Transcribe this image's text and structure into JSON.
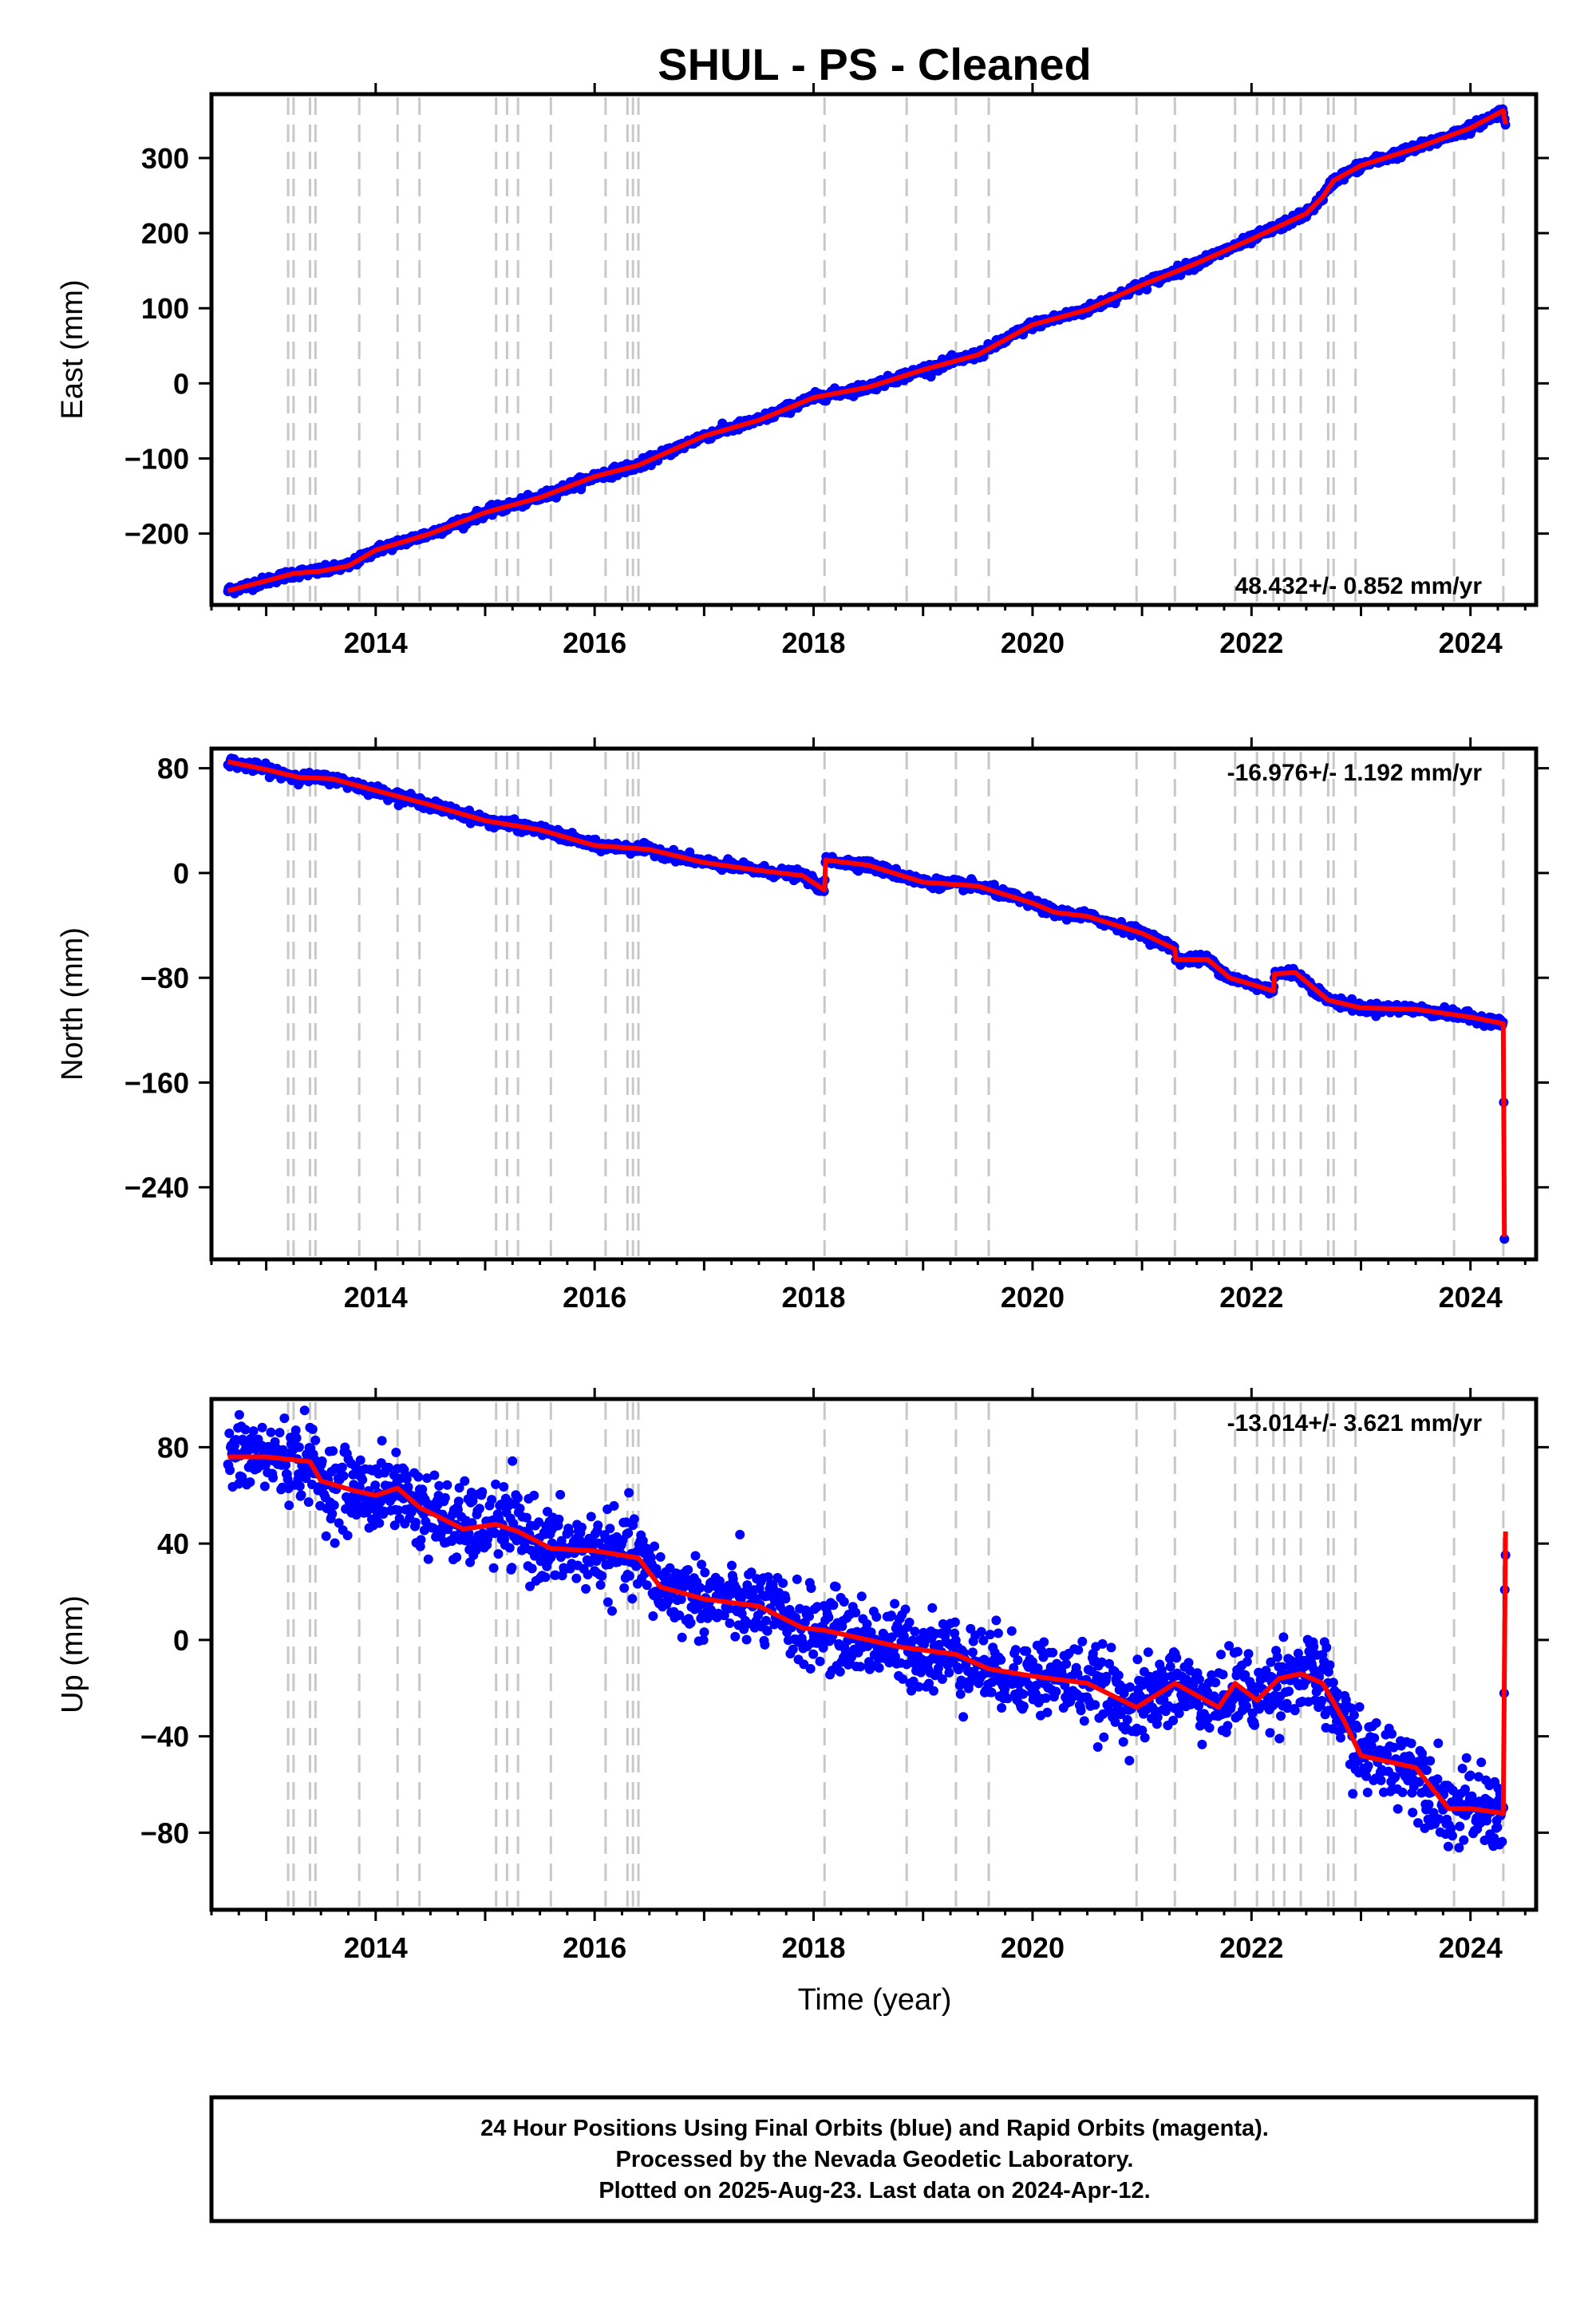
{
  "title": "SHUL  - PS - Cleaned",
  "xlabel": "Time (year)",
  "footer": {
    "lines": [
      "24 Hour Positions Using Final Orbits (blue) and Rapid Orbits (magenta).",
      "Processed by the Nevada Geodetic Laboratory.",
      "Plotted on 2025-Aug-23. Last data on 2024-Apr-12."
    ]
  },
  "colors": {
    "data": "#0000ff",
    "model": "#ff0000",
    "steps": "#c8c8c8",
    "frame": "#000000"
  },
  "chart_data": [
    {
      "type": "scatter",
      "component": "east",
      "ylabel": "East (mm)",
      "rate_label": "48.432+/- 0.852 mm/yr",
      "rate_position": "bottom-right",
      "xlim": [
        2012.5,
        2024.6
      ],
      "ylim": [
        -295,
        385
      ],
      "xticks": [
        2014,
        2016,
        2018,
        2020,
        2022,
        2024
      ],
      "yticks": [
        -200,
        -100,
        0,
        100,
        200,
        300
      ],
      "scatter_sd": 3,
      "series": [
        {
          "role": "model",
          "x": [
            2012.65,
            2013.0,
            2013.25,
            2013.5,
            2013.75,
            2014.0,
            2014.5,
            2015.0,
            2015.5,
            2016.0,
            2016.4,
            2017.0,
            2017.5,
            2018.0,
            2018.5,
            2019.0,
            2019.5,
            2020.0,
            2020.5,
            2021.0,
            2021.5,
            2022.0,
            2022.5,
            2022.65,
            2022.75,
            2023.0,
            2023.5,
            2024.0,
            2024.3,
            2024.32
          ],
          "y": [
            -276,
            -263,
            -253,
            -250,
            -243,
            -222,
            -200,
            -172,
            -152,
            -124,
            -109,
            -70,
            -49,
            -19,
            -5,
            18,
            38,
            78,
            98,
            131,
            160,
            192,
            226,
            248,
            270,
            290,
            313,
            340,
            363,
            345
          ]
        }
      ]
    },
    {
      "type": "scatter",
      "component": "north",
      "ylabel": "North (mm)",
      "rate_label": "-16.976+/- 1.192 mm/yr",
      "rate_position": "top-right",
      "xlim": [
        2012.5,
        2024.6
      ],
      "ylim": [
        -295,
        95
      ],
      "xticks": [
        2014,
        2016,
        2018,
        2020,
        2022,
        2024
      ],
      "yticks": [
        -240,
        -160,
        -80,
        0,
        80
      ],
      "scatter_sd": 1.8,
      "series": [
        {
          "role": "model",
          "x": [
            2012.65,
            2013.0,
            2013.3,
            2013.6,
            2014.0,
            2014.5,
            2015.0,
            2015.5,
            2016.0,
            2016.5,
            2017.0,
            2017.5,
            2017.9,
            2018.1,
            2018.11,
            2018.5,
            2019.0,
            2019.5,
            2020.0,
            2020.2,
            2020.5,
            2021.0,
            2021.3,
            2021.31,
            2021.6,
            2021.8,
            2022.0,
            2022.2,
            2022.21,
            2022.4,
            2022.7,
            2023.0,
            2023.5,
            2024.0,
            2024.3,
            2024.31
          ],
          "y": [
            85,
            79,
            73,
            72,
            63,
            52,
            40,
            33,
            21,
            18,
            8,
            2,
            -2,
            -13,
            10,
            6,
            -7,
            -10,
            -23,
            -30,
            -33,
            -46,
            -58,
            -66,
            -66,
            -80,
            -85,
            -90,
            -77,
            -76,
            -97,
            -103,
            -104,
            -110,
            -115,
            -278
          ]
        }
      ]
    },
    {
      "type": "scatter",
      "component": "up",
      "ylabel": "Up (mm)",
      "rate_label": "-13.014+/- 3.621 mm/yr",
      "rate_position": "top-right",
      "xlim": [
        2012.5,
        2024.6
      ],
      "ylim": [
        -112,
        100
      ],
      "xticks": [
        2014,
        2016,
        2018,
        2020,
        2022,
        2024
      ],
      "yticks": [
        -80,
        -40,
        0,
        40,
        80
      ],
      "scatter_sd": 8,
      "series": [
        {
          "role": "model",
          "x": [
            2012.65,
            2013.0,
            2013.4,
            2013.5,
            2013.8,
            2014.0,
            2014.2,
            2014.4,
            2014.8,
            2015.1,
            2015.3,
            2015.6,
            2016.0,
            2016.4,
            2016.6,
            2017.0,
            2017.5,
            2017.9,
            2018.1,
            2018.8,
            2019.3,
            2019.6,
            2020.0,
            2020.5,
            2020.95,
            2021.3,
            2021.7,
            2021.85,
            2022.05,
            2022.25,
            2022.45,
            2022.65,
            2022.85,
            2023.0,
            2023.5,
            2023.8,
            2024.0,
            2024.3,
            2024.32
          ],
          "y": [
            76,
            76,
            74,
            66,
            62,
            60,
            63,
            55,
            46,
            48,
            45,
            38,
            37,
            34,
            22,
            17,
            14,
            5,
            4,
            -3,
            -6,
            -12,
            -15,
            -18,
            -28,
            -18,
            -28,
            -18,
            -25,
            -16,
            -14,
            -18,
            -34,
            -48,
            -53,
            -70,
            -70,
            -72,
            45
          ]
        }
      ]
    }
  ],
  "step_epochs": [
    2013.2,
    2013.25,
    2013.4,
    2013.45,
    2013.85,
    2014.2,
    2014.4,
    2015.1,
    2015.2,
    2015.3,
    2015.6,
    2016.1,
    2016.3,
    2016.35,
    2016.4,
    2018.1,
    2018.85,
    2019.3,
    2019.6,
    2020.95,
    2021.3,
    2021.85,
    2022.05,
    2022.2,
    2022.3,
    2022.45,
    2022.7,
    2022.75,
    2022.95,
    2023.85,
    2024.3
  ]
}
